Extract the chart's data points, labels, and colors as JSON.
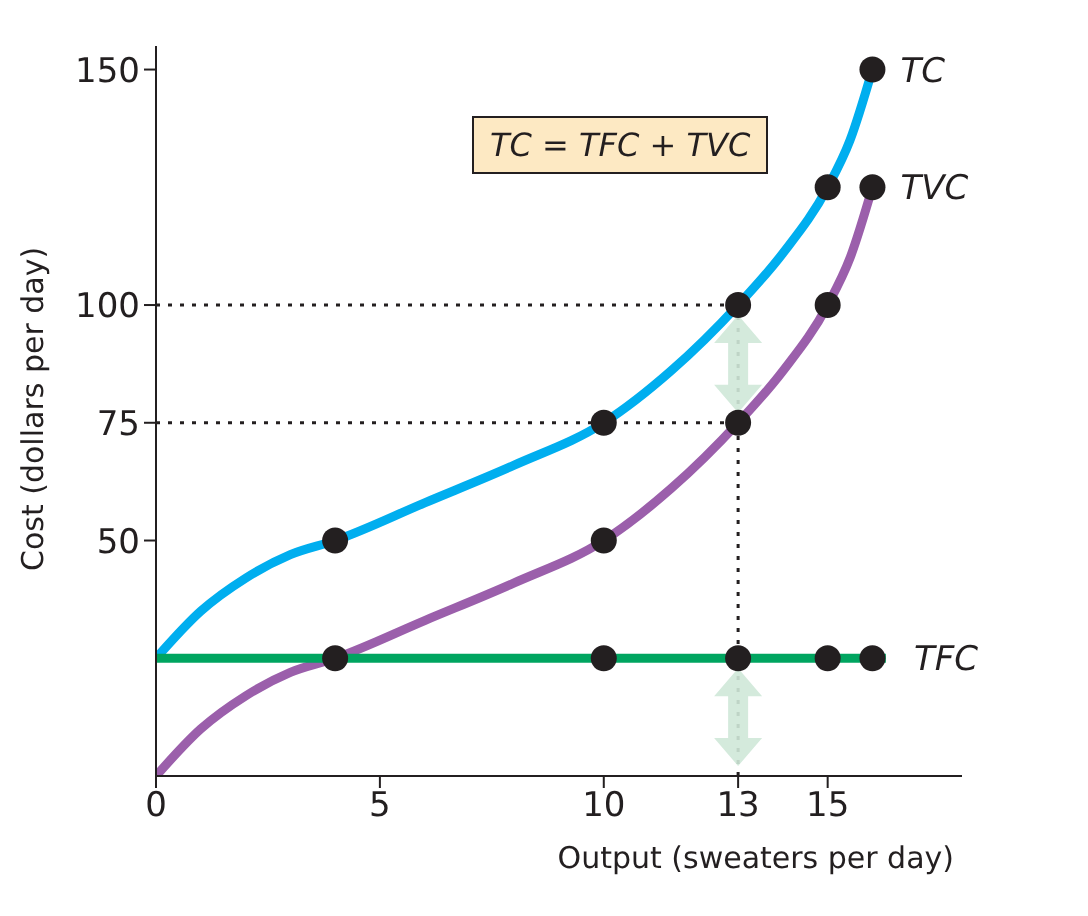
{
  "chart_data": {
    "type": "line",
    "xlabel": "Output (sweaters per day)",
    "ylabel": "Cost (dollars per day)",
    "xlim": [
      0,
      18
    ],
    "ylim": [
      0,
      155
    ],
    "xticks": [
      0,
      5,
      10,
      13,
      15
    ],
    "yticks": [
      50,
      75,
      100,
      150
    ],
    "line_style": "solid",
    "annotations": [
      "TC = TFC + TVC"
    ],
    "ref_lines": [
      {
        "axis": "y",
        "value": 100,
        "color": "#231f20",
        "line_style": "dotted"
      },
      {
        "axis": "y",
        "value": 75,
        "color": "#231f20",
        "line_style": "dotted"
      },
      {
        "axis": "x",
        "value": 13,
        "color": "#231f20",
        "line_style": "dotted"
      }
    ],
    "series": [
      {
        "name": "TC",
        "color": "#00aeef",
        "x": [
          0,
          1,
          2,
          3,
          4,
          6,
          8,
          10,
          11.5,
          13,
          14,
          15,
          15.5,
          16
        ],
        "values": [
          25,
          35,
          42,
          47,
          50,
          58,
          66,
          75,
          86,
          100,
          111,
          125,
          135,
          150
        ]
      },
      {
        "name": "TVC",
        "color": "#9b5fab",
        "x": [
          0,
          1,
          2,
          3,
          4,
          6,
          8,
          10,
          11.5,
          13,
          14,
          15,
          15.5,
          16
        ],
        "values": [
          0,
          10,
          17,
          22,
          25,
          33,
          41,
          50,
          61,
          75,
          86,
          100,
          110,
          125
        ]
      },
      {
        "name": "TFC",
        "color": "#00a560",
        "x": [
          0,
          16.3
        ],
        "values": [
          25,
          25
        ]
      },
      {
        "type": "scatter",
        "marker": "circle",
        "color": "#231f20",
        "x": [
          4,
          10,
          13,
          15,
          16,
          4,
          10,
          13,
          15,
          16,
          10,
          13,
          15,
          16
        ],
        "values": [
          50,
          75,
          100,
          125,
          150,
          25,
          50,
          75,
          100,
          125,
          25,
          25,
          25,
          25
        ]
      }
    ]
  }
}
